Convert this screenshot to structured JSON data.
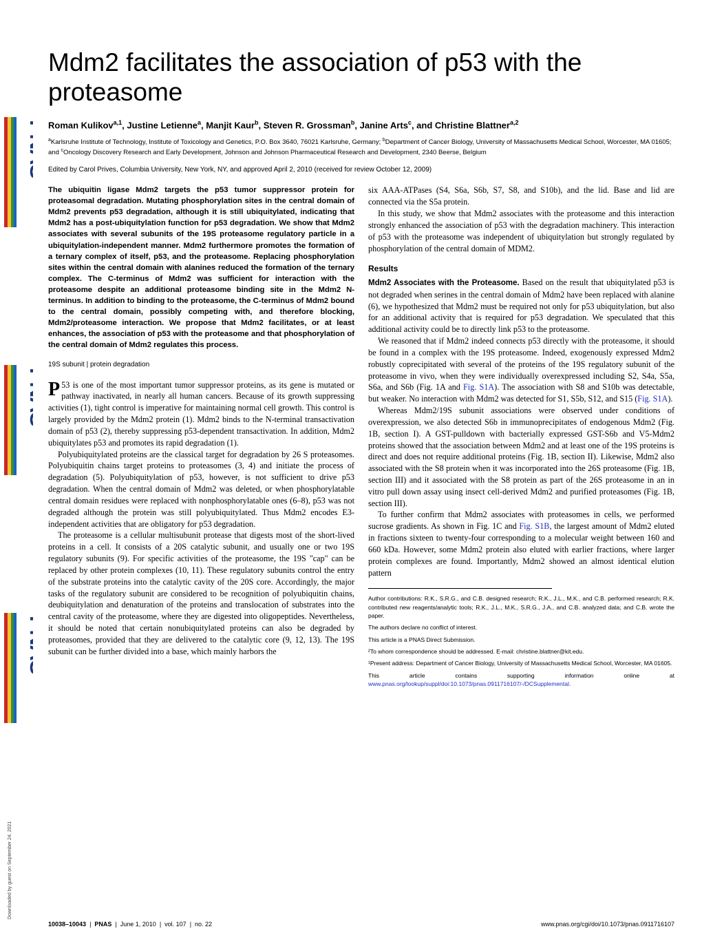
{
  "brand": {
    "logo_text": "PNAS",
    "logo_fill": "#1a3a7a",
    "stripe_colors": [
      "#c62828",
      "#fbc02d",
      "#388e3c",
      "#1565c0"
    ]
  },
  "download_note": "Downloaded by guest on September 24, 2021",
  "article": {
    "title": "Mdm2 facilitates the association of p53 with the proteasome",
    "authors_html": "Roman Kulikov<sup>a,1</sup>, Justine Letienne<sup>a</sup>, Manjit Kaur<sup>b</sup>, Steven R. Grossman<sup>b</sup>, Janine Arts<sup>c</sup>, and Christine Blattner<sup>a,2</sup>",
    "affiliations_html": "<sup>a</sup>Karlsruhe Institute of Technology, Institute of Toxicology and Genetics, P.O. Box 3640, 76021 Karlsruhe, Germany; <sup>b</sup>Department of Cancer Biology, University of Massachusetts Medical School, Worcester, MA 01605; and <sup>c</sup>Oncology Discovery Research and Early Development, Johnson and Johnson Pharmaceutical Research and Development, 2340 Beerse, Belgium",
    "edited": "Edited by Carol Prives, Columbia University, New York, NY, and approved April 2, 2010 (received for review October 12, 2009)",
    "abstract": "The ubiquitin ligase Mdm2 targets the p53 tumor suppressor protein for proteasomal degradation. Mutating phosphorylation sites in the central domain of Mdm2 prevents p53 degradation, although it is still ubiquitylated, indicating that Mdm2 has a post-ubiquitylation function for p53 degradation. We show that Mdm2 associates with several subunits of the 19S proteasome regulatory particle in a ubiquitylation-independent manner. Mdm2 furthermore promotes the formation of a ternary complex of itself, p53, and the proteasome. Replacing phosphorylation sites within the central domain with alanines reduced the formation of the ternary complex. The C-terminus of Mdm2 was sufficient for interaction with the proteasome despite an additional proteasome binding site in the Mdm2 N-terminus. In addition to binding to the proteasome, the C-terminus of Mdm2 bound to the central domain, possibly competing with, and therefore blocking, Mdm2/proteasome interaction. We propose that Mdm2 facilitates, or at least enhances, the association of p53 with the proteasome and that phosphorylation of the central domain of Mdm2 regulates this process.",
    "keywords": "19S subunit | protein degradation",
    "col1": {
      "p1_drop": "P",
      "p1": "53 is one of the most important tumor suppressor proteins, as its gene is mutated or pathway inactivated, in nearly all human cancers. Because of its growth suppressing activities (1), tight control is imperative for maintaining normal cell growth. This control is largely provided by the Mdm2 protein (1). Mdm2 binds to the N-terminal transactivation domain of p53 (2), thereby suppressing p53-dependent transactivation. In addition, Mdm2 ubiquitylates p53 and promotes its rapid degradation (1).",
      "p2": "Polyubiquitylated proteins are the classical target for degradation by 26 S proteasomes. Polyubiquitin chains target proteins to proteasomes (3, 4) and initiate the process of degradation (5). Polyubiquitylation of p53, however, is not sufficient to drive p53 degradation. When the central domain of Mdm2 was deleted, or when phosphorylatable central domain residues were replaced with nonphosphorylatable ones (6–8), p53 was not degraded although the protein was still polyubiquitylated. Thus Mdm2 encodes E3-independent activities that are obligatory for p53 degradation.",
      "p3": "The proteasome is a cellular multisubunit protease that digests most of the short-lived proteins in a cell. It consists of a 20S catalytic subunit, and usually one or two 19S regulatory subunits (9). For specific activities of the proteasome, the 19S \"cap\" can be replaced by other protein complexes (10, 11). These regulatory subunits control the entry of the substrate proteins into the catalytic cavity of the 20S core. Accordingly, the major tasks of the regulatory subunit are considered to be recognition of polyubiquitin chains, deubiquitylation and denaturation of the proteins and translocation of substrates into the central cavity of the proteasome, where they are digested into oligopeptides. Nevertheless, it should be noted that certain nonubiquitylated proteins can also be degraded by proteasomes, provided that they are delivered to the catalytic core (9, 12, 13). The 19S subunit can be further divided into a base, which mainly harbors the"
    },
    "col2": {
      "p1": "six AAA-ATPases (S4, S6a, S6b, S7, S8, and S10b), and the lid. Base and lid are connected via the S5a protein.",
      "p2": "In this study, we show that Mdm2 associates with the proteasome and this interaction strongly enhanced the association of p53 with the degradation machinery. This interaction of p53 with the proteasome was independent of ubiquitylation but strongly regulated by phosphorylation of the central domain of MDM2.",
      "results_head": "Results",
      "sub1_head": "Mdm2 Associates with the Proteasome.",
      "sub1_body": " Based on the result that ubiquitylated p53 is not degraded when serines in the central domain of Mdm2 have been replaced with alanine (6), we hypothesized that Mdm2 must be required not only for p53 ubiquitylation, but also for an additional activity that is required for p53 degradation. We speculated that this additional activity could be to directly link p53 to the proteasome.",
      "p3a": "We reasoned that if Mdm2 indeed connects p53 directly with the proteasome, it should be found in a complex with the 19S proteasome. Indeed, exogenously expressed Mdm2 robustly coprecipitated with several of the proteins of the 19S regulatory subunit of the proteasome in vivo, when they were individually overexpressed including S2, S4a, S5a, S6a, and S6b (Fig. 1A and ",
      "p3_link1": "Fig. S1A",
      "p3b": "). The association with S8 and S10b was detectable, but weaker. No interaction with Mdm2 was detected for S1, S5b, S12, and S15 (",
      "p3_link2": "Fig. S1A",
      "p3c": ").",
      "p4": "Whereas Mdm2/19S subunit associations were observed under conditions of overexpression, we also detected S6b in immunoprecipitates of endogenous Mdm2 (Fig. 1B, section I). A GST-pulldown with bacterially expressed GST-S6b and V5-Mdm2 proteins showed that the association between Mdm2 and at least one of the 19S proteins is direct and does not require additional proteins (Fig. 1B, section II). Likewise, Mdm2 also associated with the S8 protein when it was incorporated into the 26S proteasome (Fig. 1B, section III) and it associated with the S8 protein as part of the 26S proteasome in an in vitro pull down assay using insect cell-derived Mdm2 and purified proteasomes (Fig. 1B, section III).",
      "p5a": "To further confirm that Mdm2 associates with proteasomes in cells, we performed sucrose gradients. As shown in Fig. 1C and ",
      "p5_link": "Fig. S1B",
      "p5b": ", the largest amount of Mdm2 eluted in fractions sixteen to twenty-four corresponding to a molecular weight between 160 and 660 kDa. However, some Mdm2 protein also eluted with earlier fractions, where larger protein complexes are found. Importantly, Mdm2 showed an almost identical elution pattern"
    },
    "footer_notes": {
      "contrib": "Author contributions: R.K., S.R.G., and C.B. designed research; R.K., J.L., M.K., and C.B. performed research; R.K. contributed new reagents/analytic tools; R.K., J.L., M.K., S.R.G., J.A., and C.B. analyzed data; and C.B. wrote the paper.",
      "conflict": "The authors declare no conflict of interest.",
      "direct": "This article is a PNAS Direct Submission.",
      "corr": "²To whom correspondence should be addressed. E-mail: christine.blattner@kit.edu.",
      "present": "¹Present address: Department of Cancer Biology, University of Massachusetts Medical School, Worcester, MA 01605.",
      "supp_a": "This article contains supporting information online at ",
      "supp_link": "www.pnas.org/lookup/suppl/doi:10.1073/pnas.0911716107/-/DCSupplemental",
      "supp_b": "."
    }
  },
  "page_footer": {
    "left_pages": "10038–10043",
    "left_brand": "PNAS",
    "left_date": "June 1, 2010",
    "left_vol": "vol. 107",
    "left_no": "no. 22",
    "right": "www.pnas.org/cgi/doi/10.1073/pnas.0911716107"
  }
}
